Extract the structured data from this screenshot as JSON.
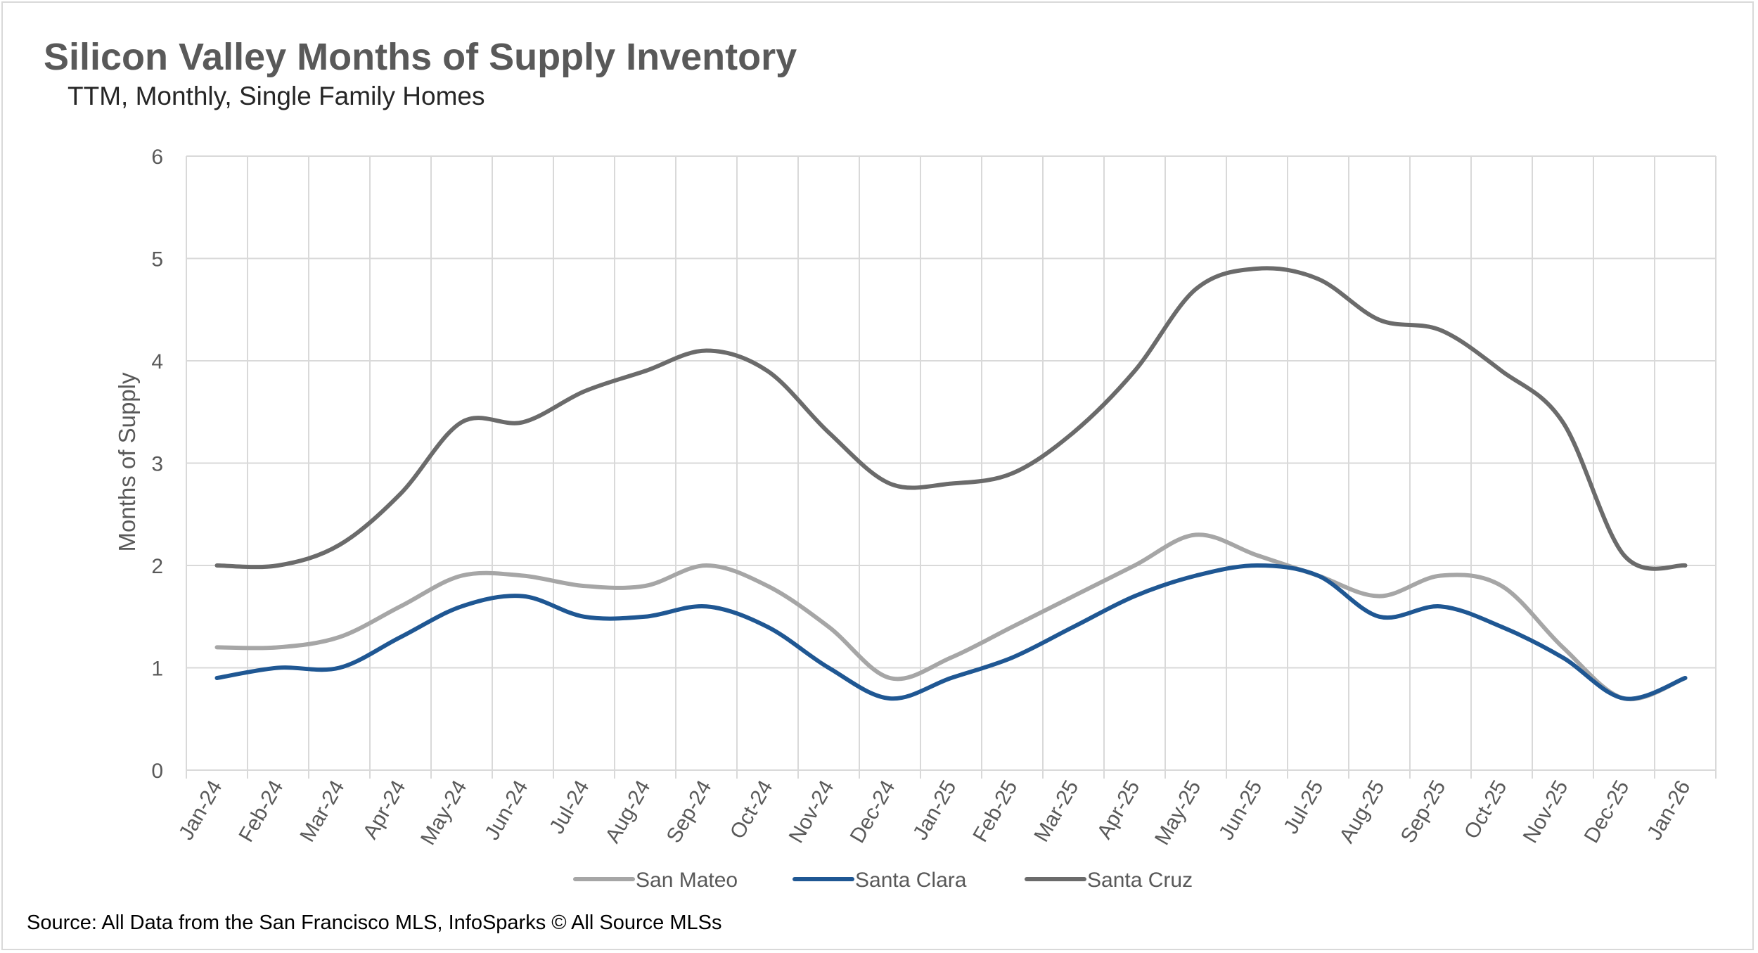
{
  "chart_data": {
    "type": "line",
    "title": "Silicon Valley Months of Supply Inventory",
    "subtitle": "TTM, Monthly, Single Family Homes",
    "ylabel": "Months of Supply",
    "xlabel": "",
    "ylim": [
      0,
      6
    ],
    "yticks": [
      0,
      1,
      2,
      3,
      4,
      5,
      6
    ],
    "grid": true,
    "legend_position": "bottom",
    "categories": [
      "Jan-24",
      "Feb-24",
      "Mar-24",
      "Apr-24",
      "May-24",
      "Jun-24",
      "Jul-24",
      "Aug-24",
      "Sep-24",
      "Oct-24",
      "Nov-24",
      "Dec-24",
      "Jan-25",
      "Feb-25",
      "Mar-25",
      "Apr-25",
      "May-25",
      "Jun-25",
      "Jul-25",
      "Aug-25",
      "Sep-25",
      "Oct-25",
      "Nov-25",
      "Dec-25",
      "Jan-26"
    ],
    "series": [
      {
        "name": "San Mateo",
        "color": "#a6a6a6",
        "values": [
          1.2,
          1.2,
          1.3,
          1.6,
          1.9,
          1.9,
          1.8,
          1.8,
          2.0,
          1.8,
          1.4,
          0.9,
          1.1,
          1.4,
          1.7,
          2.0,
          2.3,
          2.1,
          1.9,
          1.7,
          1.9,
          1.8,
          1.2,
          0.7,
          0.9
        ]
      },
      {
        "name": "Santa Clara",
        "color": "#1f5793",
        "values": [
          0.9,
          1.0,
          1.0,
          1.3,
          1.6,
          1.7,
          1.5,
          1.5,
          1.6,
          1.4,
          1.0,
          0.7,
          0.9,
          1.1,
          1.4,
          1.7,
          1.9,
          2.0,
          1.9,
          1.5,
          1.6,
          1.4,
          1.1,
          0.7,
          0.9
        ]
      },
      {
        "name": "Santa Cruz",
        "color": "#6b6b6b",
        "values": [
          2.0,
          2.0,
          2.2,
          2.7,
          3.4,
          3.4,
          3.7,
          3.9,
          4.1,
          3.9,
          3.3,
          2.8,
          2.8,
          2.9,
          3.3,
          3.9,
          4.7,
          4.9,
          4.8,
          4.4,
          4.3,
          3.9,
          3.4,
          2.1,
          2.0
        ]
      }
    ]
  },
  "footer": {
    "source": "Source: All Data from the San Francisco MLS, InfoSparks © All Source MLSs"
  }
}
